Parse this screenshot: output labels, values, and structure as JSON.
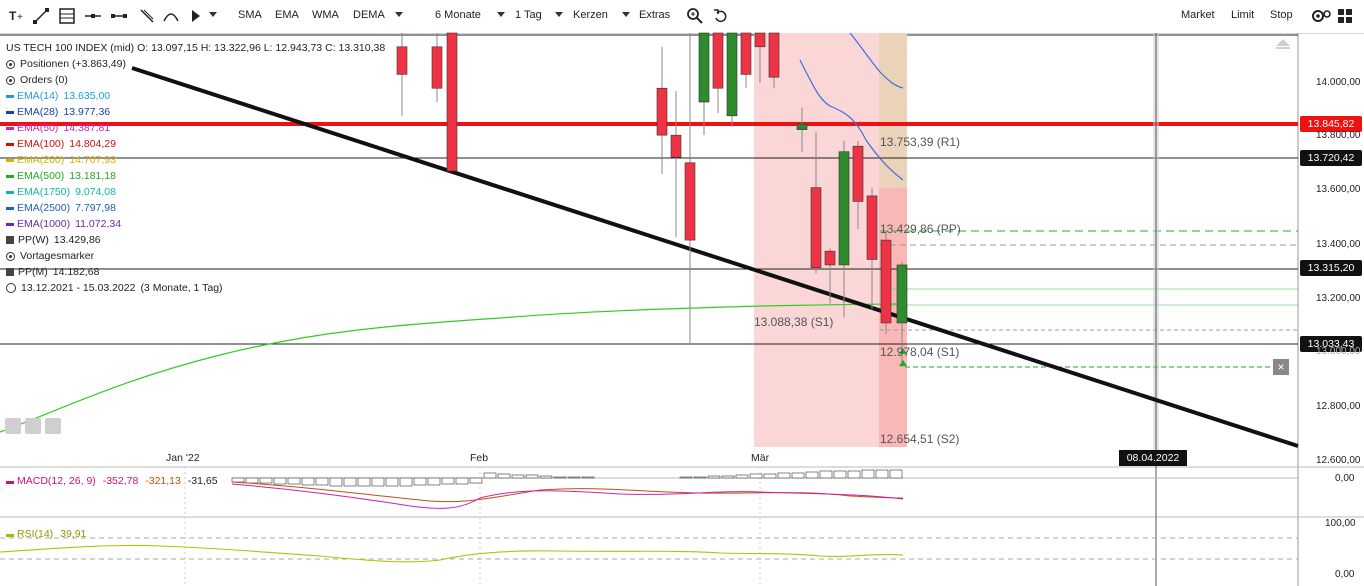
{
  "toolbar": {
    "left_icons": [
      "text-tool-icon",
      "line-tool-icon",
      "fibonacci-tool-icon",
      "horizontal-line-icon",
      "channel-icon",
      "pencil-icon",
      "arc-icon",
      "arrow-icon"
    ],
    "sma": "SMA",
    "ema": "EMA",
    "wma": "WMA",
    "dema": "DEMA",
    "period": "6 Monate",
    "interval": "1 Tag",
    "chart_type": "Kerzen",
    "extras": "Extras",
    "market": "Market",
    "limit": "Limit",
    "stop": "Stop"
  },
  "legend": {
    "title": "US TECH 100 INDEX (mid)  O: 13.097,15  H: 13.322,96  L: 12.943,73  C: 13.310,38",
    "positions": "Positionen (+3.863,49)",
    "orders": "Orders (0)",
    "emas": [
      {
        "name": "EMA(14)",
        "value": "13.635,00",
        "color": "#1e9be0"
      },
      {
        "name": "EMA(28)",
        "value": "13.977,36",
        "color": "#1a3fb0"
      },
      {
        "name": "EMA(50)",
        "value": "14.387,81",
        "color": "#d020c0"
      },
      {
        "name": "EMA(100)",
        "value": "14.804,29",
        "color": "#cc1111"
      },
      {
        "name": "EMA(200)",
        "value": "14.707,93",
        "color": "#d8b000"
      },
      {
        "name": "EMA(500)",
        "value": "13.181,18",
        "color": "#22aa22"
      },
      {
        "name": "EMA(1750)",
        "value": "9.074,08",
        "color": "#10b8a0"
      },
      {
        "name": "EMA(2500)",
        "value": "7.797,98",
        "color": "#2060c0"
      },
      {
        "name": "EMA(1000)",
        "value": "11.072,34",
        "color": "#6a2aa0"
      }
    ],
    "ppw": {
      "name": "PP(W)",
      "value": "13.429,86"
    },
    "vortag": "Vortagesmarker",
    "ppm": {
      "name": "PP(M)",
      "value": "14.182,68"
    },
    "range": "13.12.2021 - 15.03.2022",
    "range_detail": "(3 Monate, 1 Tag)"
  },
  "price_labels": {
    "red": "13.845,82",
    "l1": "13.720,42",
    "l2": "13.315,20",
    "l3": "13.033,43"
  },
  "y_axis": [
    "14.000,00",
    "13.800,00",
    "13.600,00",
    "13.400,00",
    "13.200,00",
    "13.000,00",
    "12.800,00",
    "12.600,00"
  ],
  "x_axis": [
    "Jan '22",
    "Feb",
    "Mär"
  ],
  "pivots": {
    "r1": "13.753,39 (R1)",
    "pp": "13.429,86 (PP)",
    "s1a": "13.088,38 (S1)",
    "s1b": "12.978,04 (S1)",
    "s2": "12.654,51 (S2)"
  },
  "date_marker": "08.04.2022",
  "close_x": "×",
  "macd": {
    "label": "MACD(12, 26, 9)",
    "v1": "-352,78",
    "v2": "-321,13",
    "v3": "-31,65",
    "axis": "0,00",
    "colors": {
      "label": "#cc1177",
      "v1": "#cc1177",
      "v2": "#c05010"
    }
  },
  "rsi": {
    "label": "RSI(14)",
    "value": "39,91",
    "axis_top": "100,00",
    "axis_bottom": "0,00",
    "color": "#a8b800"
  },
  "chart_data": {
    "type": "candlestick",
    "y_range": [
      12600,
      14150
    ],
    "note_series": [
      {
        "o": 14100,
        "h": 14150,
        "l": 13850,
        "c": 14000
      },
      {
        "o": 14100,
        "h": 14150,
        "l": 13900,
        "c": 13950
      },
      {
        "o": 14150,
        "h": 14150,
        "l": 13700,
        "c": 13650
      },
      {
        "o": 13950,
        "h": 14100,
        "l": 13640,
        "c": 13780
      },
      {
        "o": 13780,
        "h": 13940,
        "l": 13410,
        "c": 13700
      },
      {
        "o": 13680,
        "h": 14150,
        "l": 13020,
        "c": 13400
      },
      {
        "o": 13900,
        "h": 14150,
        "l": 13780,
        "c": 14150
      },
      {
        "o": 14150,
        "h": 14150,
        "l": 13860,
        "c": 13950
      },
      {
        "o": 13850,
        "h": 14150,
        "l": 13810,
        "c": 14150
      },
      {
        "o": 14150,
        "h": 14150,
        "l": 13950,
        "c": 14000
      },
      {
        "o": 14150,
        "h": 14150,
        "l": 13970,
        "c": 14100
      },
      {
        "o": 14150,
        "h": 14150,
        "l": 13950,
        "c": 13990
      },
      {
        "o": 13800,
        "h": 13880,
        "l": 13720,
        "c": 13820
      },
      {
        "o": 13590,
        "h": 13790,
        "l": 13280,
        "c": 13300
      },
      {
        "o": 13360,
        "h": 13370,
        "l": 13170,
        "c": 13310
      },
      {
        "o": 13310,
        "h": 13760,
        "l": 13120,
        "c": 13720
      },
      {
        "o": 13740,
        "h": 13760,
        "l": 13440,
        "c": 13540
      },
      {
        "o": 13560,
        "h": 13590,
        "l": 13150,
        "c": 13330
      },
      {
        "o": 13400,
        "h": 13430,
        "l": 13060,
        "c": 13100
      },
      {
        "o": 13100,
        "h": 13320,
        "l": 12940,
        "c": 13310
      }
    ]
  }
}
